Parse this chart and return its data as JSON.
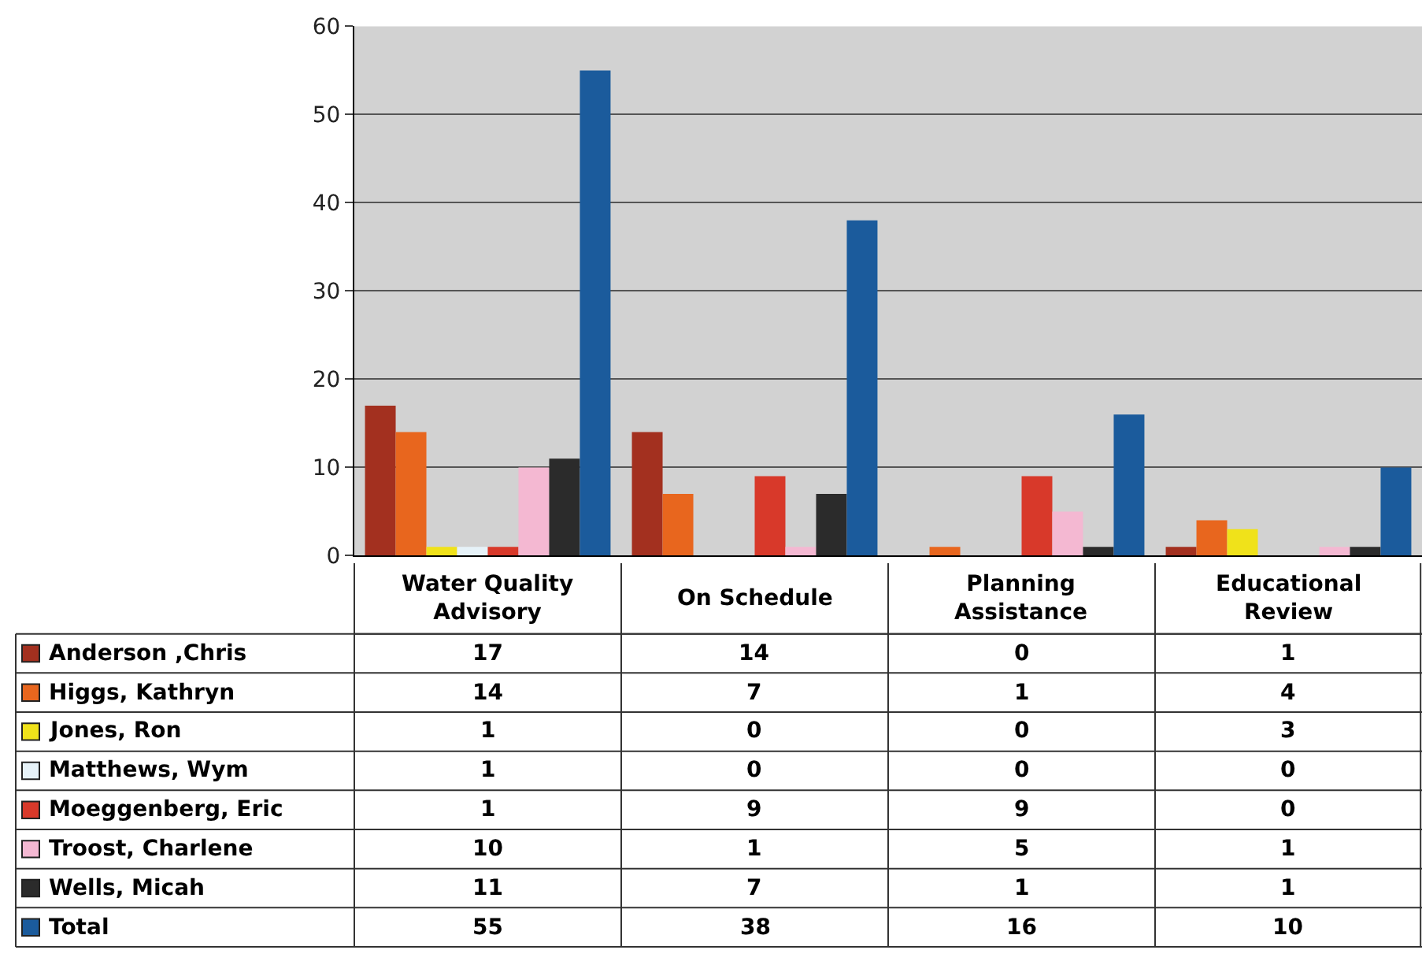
{
  "chart_data": {
    "type": "bar",
    "categories": [
      "Water Quality Advisory",
      "On Schedule",
      "Planning Assistance",
      "Educational Review"
    ],
    "series": [
      {
        "name": "Anderson ,Chris",
        "color": "#a3301f",
        "values": [
          17,
          14,
          0,
          1
        ]
      },
      {
        "name": "Higgs, Kathryn",
        "color": "#e8661e",
        "values": [
          14,
          7,
          1,
          4
        ]
      },
      {
        "name": "Jones, Ron",
        "color": "#f0e21a",
        "values": [
          1,
          0,
          0,
          3
        ]
      },
      {
        "name": "Matthews, Wym",
        "color": "#e6f2f8",
        "values": [
          1,
          0,
          0,
          0
        ]
      },
      {
        "name": "Moeggenberg, Eric",
        "color": "#d8392a",
        "values": [
          1,
          9,
          9,
          0
        ]
      },
      {
        "name": "Troost, Charlene",
        "color": "#f4b8d2",
        "values": [
          10,
          1,
          5,
          1
        ]
      },
      {
        "name": "Wells, Micah",
        "color": "#2b2b2b",
        "values": [
          11,
          7,
          1,
          1
        ]
      },
      {
        "name": "Total",
        "color": "#1b5b9c",
        "values": [
          55,
          38,
          16,
          10
        ]
      }
    ],
    "ylim": [
      0,
      60
    ],
    "yticks": [
      0,
      10,
      20,
      30,
      40,
      50,
      60
    ],
    "grid": "y",
    "data_labels": true,
    "legend": "bottom left"
  }
}
